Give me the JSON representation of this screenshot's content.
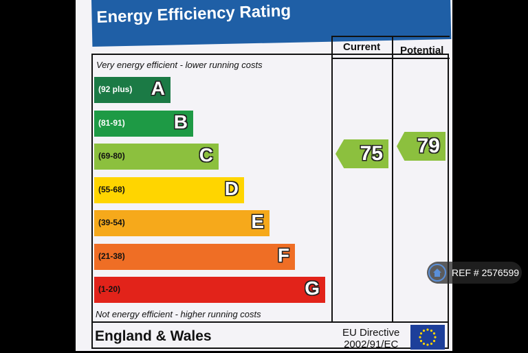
{
  "chart_data": {
    "type": "bar",
    "title": "Energy Efficiency Rating",
    "top_caption": "Very energy efficient - lower running costs",
    "bottom_caption": "Not energy efficient - higher running costs",
    "column_headers": [
      "Current",
      "Potential"
    ],
    "bands": [
      {
        "letter": "A",
        "range": "(92 plus)",
        "color": "#1b7a45",
        "text_color": "#ffffff",
        "width_pct": 0.33
      },
      {
        "letter": "B",
        "range": "(81-91)",
        "color": "#1e9a45",
        "text_color": "#ffffff",
        "width_pct": 0.43
      },
      {
        "letter": "C",
        "range": "(69-80)",
        "color": "#8cc03e",
        "text_color": "#111111",
        "width_pct": 0.54
      },
      {
        "letter": "D",
        "range": "(55-68)",
        "color": "#ffd500",
        "text_color": "#111111",
        "width_pct": 0.65
      },
      {
        "letter": "E",
        "range": "(39-54)",
        "color": "#f6a91b",
        "text_color": "#111111",
        "width_pct": 0.76
      },
      {
        "letter": "F",
        "range": "(21-38)",
        "color": "#ef6e25",
        "text_color": "#111111",
        "width_pct": 0.87
      },
      {
        "letter": "G",
        "range": "(1-20)",
        "color": "#e2231a",
        "text_color": "#111111",
        "width_pct": 1.0
      }
    ],
    "current": {
      "value": 75,
      "band": "C",
      "color": "#8cc03e"
    },
    "potential": {
      "value": 79,
      "band": "C",
      "color": "#8cc03e"
    }
  },
  "footer": {
    "region": "England & Wales",
    "directive_line1": "EU Directive",
    "directive_line2": "2002/91/EC"
  },
  "watermark": {
    "ref_text": "REF # 2576599",
    "icon": "home-icon"
  }
}
